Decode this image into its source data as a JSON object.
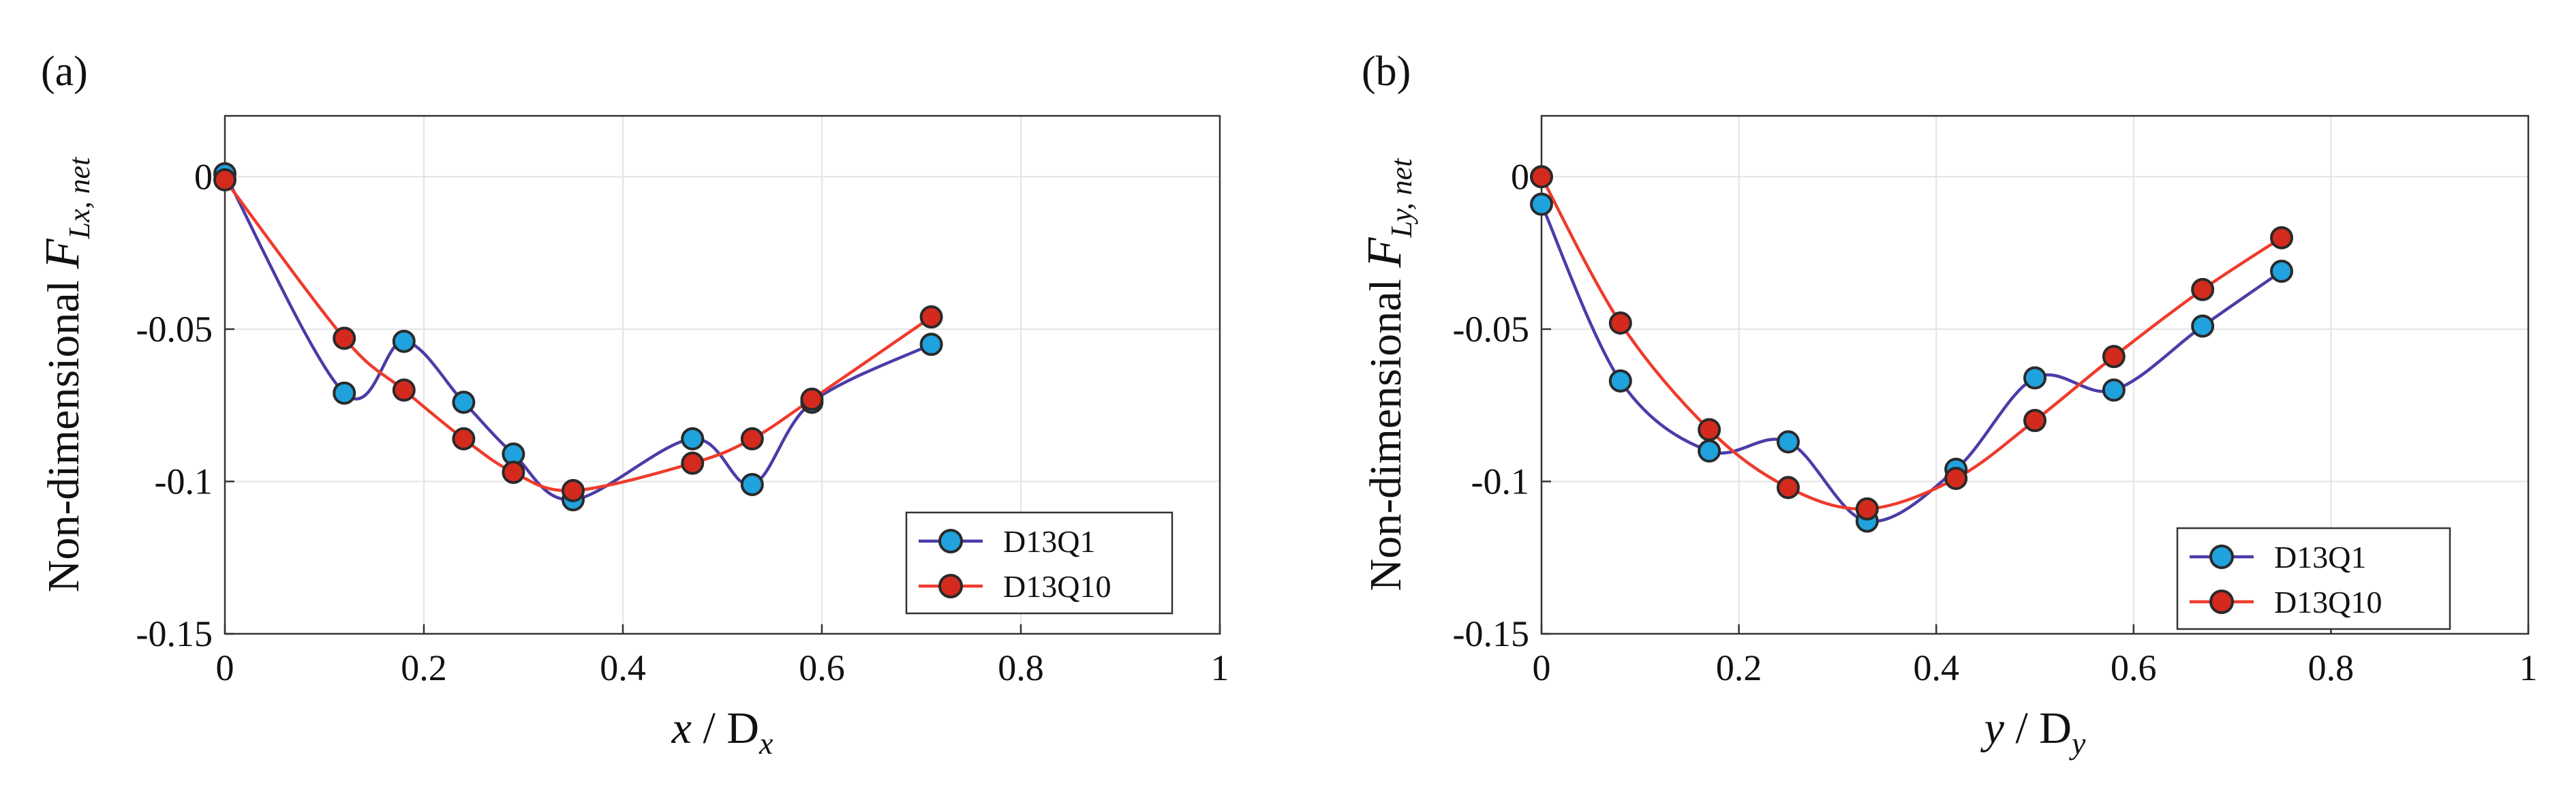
{
  "colors": {
    "series1_line": "#4b3ca8",
    "series1_marker": "#1fa2dd",
    "series2_line": "#ee3b2c",
    "series2_marker": "#d42a1e",
    "marker_edge": "#2a2a2a",
    "grid": "#e3e3e3",
    "axis": "#333333"
  },
  "chart_data": [
    {
      "type": "line",
      "panel_label": "(a)",
      "ylabel_text": "Non-dimensional",
      "ylabel_symbol": "F",
      "ylabel_subscript": "Lx, net",
      "xlabel_var": "x",
      "xlabel_mid": " / D",
      "xlabel_subscript": "x",
      "xlim": [
        0,
        1
      ],
      "ylim": [
        -0.15,
        0.02
      ],
      "xticks": [
        0,
        0.2,
        0.4,
        0.6,
        0.8,
        1
      ],
      "xtick_labels": [
        "0",
        "0.2",
        "0.4",
        "0.6",
        "0.8",
        "1"
      ],
      "yticks": [
        0,
        -0.05,
        -0.1,
        -0.15
      ],
      "ytick_labels": [
        "0",
        "-0.05",
        "-0.1",
        "-0.15"
      ],
      "grid": true,
      "legend_position": "bottom-right",
      "series": [
        {
          "name": "D13Q1",
          "x": [
            0,
            0.12,
            0.18,
            0.24,
            0.29,
            0.35,
            0.47,
            0.53,
            0.59,
            0.71
          ],
          "y": [
            0.001,
            -0.071,
            -0.054,
            -0.074,
            -0.091,
            -0.106,
            -0.086,
            -0.101,
            -0.074,
            -0.055
          ]
        },
        {
          "name": "D13Q10",
          "x": [
            0,
            0.12,
            0.18,
            0.24,
            0.29,
            0.35,
            0.47,
            0.53,
            0.59,
            0.71
          ],
          "y": [
            -0.001,
            -0.053,
            -0.07,
            -0.086,
            -0.097,
            -0.103,
            -0.094,
            -0.086,
            -0.073,
            -0.046
          ]
        }
      ]
    },
    {
      "type": "line",
      "panel_label": "(b)",
      "ylabel_text": "Non-dimensional",
      "ylabel_symbol": "F",
      "ylabel_subscript": "Ly, net",
      "xlabel_var": "y",
      "xlabel_mid": " / D",
      "xlabel_subscript": "y",
      "xlim": [
        0,
        1
      ],
      "ylim": [
        -0.15,
        0.02
      ],
      "xticks": [
        0,
        0.2,
        0.4,
        0.6,
        0.8,
        1
      ],
      "xtick_labels": [
        "0",
        "0.2",
        "0.4",
        "0.6",
        "0.8",
        "1"
      ],
      "yticks": [
        0,
        -0.05,
        -0.1,
        -0.15
      ],
      "ytick_labels": [
        "0",
        "-0.05",
        "-0.1",
        "-0.15"
      ],
      "grid": true,
      "legend_position": "bottom-right",
      "series": [
        {
          "name": "D13Q1",
          "x": [
            0,
            0.08,
            0.17,
            0.25,
            0.33,
            0.42,
            0.5,
            0.58,
            0.67,
            0.75
          ],
          "y": [
            -0.009,
            -0.067,
            -0.09,
            -0.087,
            -0.113,
            -0.096,
            -0.066,
            -0.07,
            -0.049,
            -0.031
          ]
        },
        {
          "name": "D13Q10",
          "x": [
            0,
            0.08,
            0.17,
            0.25,
            0.33,
            0.42,
            0.5,
            0.58,
            0.67,
            0.75
          ],
          "y": [
            0.0,
            -0.048,
            -0.083,
            -0.102,
            -0.109,
            -0.099,
            -0.08,
            -0.059,
            -0.037,
            -0.02
          ]
        }
      ]
    }
  ]
}
